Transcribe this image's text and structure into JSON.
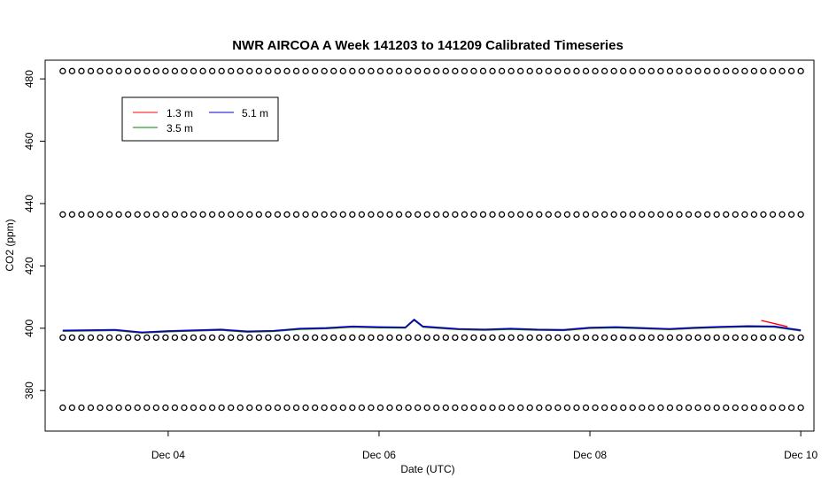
{
  "chart_data": {
    "type": "line",
    "title": "NWR AIRCOA A  Week 141203 to 141209  Calibrated Timeseries",
    "xlabel": "Date (UTC)",
    "ylabel": "CO2 (ppm)",
    "x_range": [
      "2014-12-03T00:00Z",
      "2014-12-10T00:00Z"
    ],
    "xlim": [
      "2014-12-02T20:00Z",
      "2014-12-10T03:00Z"
    ],
    "ylim": [
      367,
      486
    ],
    "x_ticks": [
      "Dec 04",
      "Dec 06",
      "Dec 08",
      "Dec 10"
    ],
    "y_ticks": [
      380,
      400,
      420,
      440,
      460,
      480
    ],
    "grid": false,
    "legend_position": "top-left",
    "series": [
      {
        "name": "1.3 m",
        "color": "#ff0000",
        "note_points": [
          [
            "2014-12-09T15:00Z",
            402.5
          ],
          [
            "2014-12-09T18:00Z",
            401.5
          ],
          [
            "2014-12-09T21:00Z",
            400.5
          ]
        ]
      },
      {
        "name": "3.5 m",
        "color": "#008000"
      },
      {
        "name": "5.1 m",
        "color": "#0000cc",
        "points": [
          [
            "2014-12-03T00:00Z",
            399.3
          ],
          [
            "2014-12-03T12:00Z",
            399.5
          ],
          [
            "2014-12-03T18:00Z",
            398.7
          ],
          [
            "2014-12-04T00:00Z",
            399.1
          ],
          [
            "2014-12-04T12:00Z",
            399.6
          ],
          [
            "2014-12-04T18:00Z",
            399.0
          ],
          [
            "2014-12-05T00:00Z",
            399.2
          ],
          [
            "2014-12-05T06:00Z",
            399.9
          ],
          [
            "2014-12-05T12:00Z",
            400.1
          ],
          [
            "2014-12-05T18:00Z",
            400.6
          ],
          [
            "2014-12-06T00:00Z",
            400.4
          ],
          [
            "2014-12-06T06:00Z",
            400.3
          ],
          [
            "2014-12-06T08:00Z",
            402.8
          ],
          [
            "2014-12-06T10:00Z",
            400.6
          ],
          [
            "2014-12-06T18:00Z",
            399.8
          ],
          [
            "2014-12-07T00:00Z",
            399.6
          ],
          [
            "2014-12-07T06:00Z",
            399.9
          ],
          [
            "2014-12-07T12:00Z",
            399.6
          ],
          [
            "2014-12-07T18:00Z",
            399.5
          ],
          [
            "2014-12-08T00:00Z",
            400.2
          ],
          [
            "2014-12-08T06:00Z",
            400.4
          ],
          [
            "2014-12-08T12:00Z",
            400.1
          ],
          [
            "2014-12-08T18:00Z",
            399.8
          ],
          [
            "2014-12-09T00:00Z",
            400.2
          ],
          [
            "2014-12-09T06:00Z",
            400.5
          ],
          [
            "2014-12-09T12:00Z",
            400.7
          ],
          [
            "2014-12-09T18:00Z",
            400.6
          ],
          [
            "2014-12-10T00:00Z",
            399.4
          ]
        ]
      }
    ],
    "marker_rows": [
      {
        "y": 482.5,
        "count": 80
      },
      {
        "y": 436.5,
        "count": 80
      },
      {
        "y": 397,
        "count": 80
      },
      {
        "y": 374.5,
        "count": 80
      }
    ],
    "legend": {
      "entries": [
        {
          "label": "1.3 m",
          "color": "#ff0000"
        },
        {
          "label": "3.5 m",
          "color": "#008000"
        },
        {
          "label": "5.1 m",
          "color": "#0000cc"
        }
      ]
    }
  }
}
